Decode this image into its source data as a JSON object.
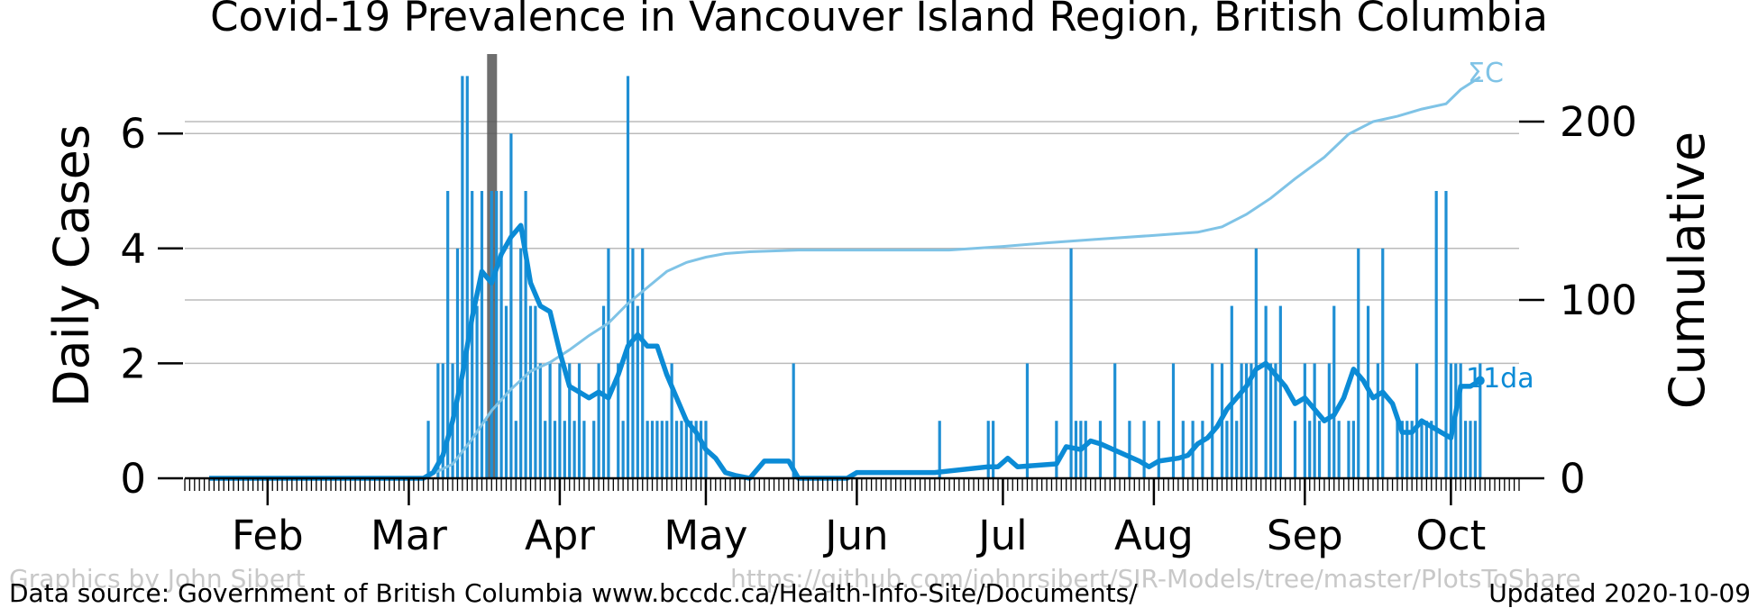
{
  "chart_data": {
    "type": "bar",
    "title": "Covid-19 Prevalence in Vancouver Island Region, British Columbia",
    "ylabel": "Daily Cases",
    "ylabel_right": "Cumulative",
    "ylim": [
      0,
      7
    ],
    "ylim_right": [
      0,
      225
    ],
    "yticks": [
      0,
      2,
      4,
      6
    ],
    "yticks_right": [
      0,
      100,
      200
    ],
    "x_range": [
      "2020-01-15",
      "2020-10-15"
    ],
    "month_ticks": [
      {
        "label": "Feb",
        "date": "2020-02-01"
      },
      {
        "label": "Mar",
        "date": "2020-03-01"
      },
      {
        "label": "Apr",
        "date": "2020-04-01"
      },
      {
        "label": "May",
        "date": "2020-05-01"
      },
      {
        "label": "Jun",
        "date": "2020-06-01"
      },
      {
        "label": "Jul",
        "date": "2020-07-01"
      },
      {
        "label": "Aug",
        "date": "2020-08-01"
      },
      {
        "label": "Sep",
        "date": "2020-09-01"
      },
      {
        "label": "Oct",
        "date": "2020-10-01"
      }
    ],
    "marker_date": "2020-03-18",
    "colors": {
      "daily": "#1f8fd4",
      "moving_avg": "#0b8bd6",
      "cumulative": "#7fc3e6",
      "marker": "#555555",
      "grid": "#bbbbbb"
    },
    "daily_cases": {
      "x": [
        "2020-03-05",
        "2020-03-07",
        "2020-03-08",
        "2020-03-09",
        "2020-03-10",
        "2020-03-11",
        "2020-03-12",
        "2020-03-13",
        "2020-03-14",
        "2020-03-15",
        "2020-03-16",
        "2020-03-17",
        "2020-03-18",
        "2020-03-19",
        "2020-03-20",
        "2020-03-21",
        "2020-03-22",
        "2020-03-23",
        "2020-03-24",
        "2020-03-25",
        "2020-03-26",
        "2020-03-27",
        "2020-03-28",
        "2020-03-29",
        "2020-03-30",
        "2020-03-31",
        "2020-04-01",
        "2020-04-02",
        "2020-04-03",
        "2020-04-04",
        "2020-04-05",
        "2020-04-06",
        "2020-04-08",
        "2020-04-09",
        "2020-04-10",
        "2020-04-11",
        "2020-04-13",
        "2020-04-14",
        "2020-04-15",
        "2020-04-16",
        "2020-04-17",
        "2020-04-18",
        "2020-04-19",
        "2020-04-20",
        "2020-04-21",
        "2020-04-22",
        "2020-04-23",
        "2020-04-24",
        "2020-04-25",
        "2020-04-26",
        "2020-04-27",
        "2020-04-28",
        "2020-04-29",
        "2020-04-30",
        "2020-05-01",
        "2020-05-19",
        "2020-06-18",
        "2020-06-28",
        "2020-06-29",
        "2020-07-06",
        "2020-07-12",
        "2020-07-15",
        "2020-07-16",
        "2020-07-17",
        "2020-07-18",
        "2020-07-21",
        "2020-07-24",
        "2020-07-27",
        "2020-07-30",
        "2020-08-02",
        "2020-08-05",
        "2020-08-07",
        "2020-08-09",
        "2020-08-11",
        "2020-08-13",
        "2020-08-15",
        "2020-08-16",
        "2020-08-17",
        "2020-08-18",
        "2020-08-19",
        "2020-08-20",
        "2020-08-21",
        "2020-08-22",
        "2020-08-24",
        "2020-08-25",
        "2020-08-26",
        "2020-08-27",
        "2020-08-30",
        "2020-09-01",
        "2020-09-02",
        "2020-09-03",
        "2020-09-04",
        "2020-09-06",
        "2020-09-07",
        "2020-09-08",
        "2020-09-10",
        "2020-09-11",
        "2020-09-12",
        "2020-09-14",
        "2020-09-16",
        "2020-09-17",
        "2020-09-20",
        "2020-09-21",
        "2020-09-22",
        "2020-09-23",
        "2020-09-24",
        "2020-09-25",
        "2020-09-26",
        "2020-09-27",
        "2020-09-28",
        "2020-09-30",
        "2020-10-01",
        "2020-10-02",
        "2020-10-03",
        "2020-10-04",
        "2020-10-05",
        "2020-10-06",
        "2020-10-07"
      ],
      "values": [
        1,
        2,
        2,
        5,
        2,
        4,
        7,
        7,
        5,
        3,
        5,
        1,
        5,
        5,
        5,
        3,
        6,
        1,
        4,
        5,
        3,
        3,
        2,
        1,
        2,
        1,
        2,
        1,
        2,
        1,
        2,
        1,
        1,
        2,
        3,
        4,
        2,
        1,
        7,
        4,
        3,
        4,
        1,
        1,
        1,
        1,
        1,
        2,
        1,
        1,
        1,
        1,
        1,
        1,
        1,
        2,
        1,
        1,
        1,
        2,
        1,
        4,
        1,
        1,
        1,
        1,
        2,
        1,
        1,
        1,
        2,
        1,
        1,
        1,
        2,
        2,
        1,
        3,
        1,
        2,
        2,
        2,
        4,
        3,
        2,
        2,
        3,
        1,
        2,
        1,
        2,
        1,
        2,
        3,
        1,
        1,
        1,
        4,
        3,
        2,
        4,
        1,
        1,
        1,
        1,
        2,
        1,
        1,
        1,
        5,
        5,
        2,
        2,
        2,
        1,
        1,
        1,
        2
      ]
    },
    "moving_avg": {
      "label": "11da",
      "x": [
        "2020-01-20",
        "2020-03-04",
        "2020-03-06",
        "2020-03-08",
        "2020-03-10",
        "2020-03-12",
        "2020-03-14",
        "2020-03-16",
        "2020-03-18",
        "2020-03-20",
        "2020-03-22",
        "2020-03-24",
        "2020-03-26",
        "2020-03-27",
        "2020-03-28",
        "2020-03-30",
        "2020-04-01",
        "2020-04-03",
        "2020-04-05",
        "2020-04-07",
        "2020-04-09",
        "2020-04-11",
        "2020-04-13",
        "2020-04-15",
        "2020-04-17",
        "2020-04-19",
        "2020-04-21",
        "2020-04-23",
        "2020-04-25",
        "2020-04-27",
        "2020-04-29",
        "2020-05-01",
        "2020-05-03",
        "2020-05-05",
        "2020-05-07",
        "2020-05-10",
        "2020-05-13",
        "2020-05-16",
        "2020-05-18",
        "2020-05-20",
        "2020-05-30",
        "2020-06-01",
        "2020-06-10",
        "2020-06-17",
        "2020-06-28",
        "2020-06-30",
        "2020-07-02",
        "2020-07-04",
        "2020-07-12",
        "2020-07-14",
        "2020-07-17",
        "2020-07-19",
        "2020-07-21",
        "2020-07-29",
        "2020-07-31",
        "2020-08-02",
        "2020-08-06",
        "2020-08-08",
        "2020-08-10",
        "2020-08-12",
        "2020-08-14",
        "2020-08-16",
        "2020-08-18",
        "2020-08-20",
        "2020-08-22",
        "2020-08-24",
        "2020-08-26",
        "2020-08-28",
        "2020-08-30",
        "2020-09-01",
        "2020-09-03",
        "2020-09-05",
        "2020-09-07",
        "2020-09-09",
        "2020-09-11",
        "2020-09-13",
        "2020-09-15",
        "2020-09-17",
        "2020-09-19",
        "2020-09-21",
        "2020-09-23",
        "2020-09-25",
        "2020-09-27",
        "2020-09-29",
        "2020-10-01",
        "2020-10-03",
        "2020-10-05",
        "2020-10-07"
      ],
      "values": [
        0,
        0,
        0.1,
        0.4,
        1.0,
        1.8,
        2.8,
        3.6,
        3.4,
        3.9,
        4.2,
        4.4,
        3.4,
        3.2,
        3.0,
        2.9,
        2.2,
        1.6,
        1.5,
        1.4,
        1.5,
        1.4,
        1.8,
        2.3,
        2.5,
        2.3,
        2.3,
        1.8,
        1.4,
        1.0,
        0.8,
        0.5,
        0.35,
        0.1,
        0.05,
        0,
        0.3,
        0.3,
        0.3,
        0,
        0,
        0.1,
        0.1,
        0.1,
        0.2,
        0.2,
        0.35,
        0.2,
        0.25,
        0.55,
        0.5,
        0.65,
        0.6,
        0.3,
        0.2,
        0.3,
        0.35,
        0.4,
        0.6,
        0.7,
        0.9,
        1.2,
        1.4,
        1.6,
        1.9,
        2.0,
        1.8,
        1.6,
        1.3,
        1.4,
        1.2,
        1.0,
        1.1,
        1.4,
        1.9,
        1.7,
        1.4,
        1.5,
        1.3,
        0.8,
        0.8,
        1.0,
        0.9,
        0.8,
        0.7,
        1.6,
        1.6,
        1.7
      ]
    },
    "cumulative": {
      "label": "ΣC",
      "x": [
        "2020-01-20",
        "2020-03-04",
        "2020-03-10",
        "2020-03-14",
        "2020-03-18",
        "2020-03-22",
        "2020-03-26",
        "2020-03-30",
        "2020-04-03",
        "2020-04-07",
        "2020-04-11",
        "2020-04-15",
        "2020-04-19",
        "2020-04-23",
        "2020-04-27",
        "2020-05-01",
        "2020-05-05",
        "2020-05-10",
        "2020-05-20",
        "2020-06-01",
        "2020-06-20",
        "2020-07-01",
        "2020-07-10",
        "2020-07-20",
        "2020-07-31",
        "2020-08-10",
        "2020-08-15",
        "2020-08-20",
        "2020-08-25",
        "2020-08-30",
        "2020-09-05",
        "2020-09-10",
        "2020-09-15",
        "2020-09-20",
        "2020-09-25",
        "2020-09-30",
        "2020-10-03",
        "2020-10-07"
      ],
      "values": [
        0,
        0,
        8,
        22,
        38,
        50,
        60,
        65,
        72,
        80,
        87,
        98,
        107,
        116,
        121,
        124,
        126,
        127,
        128,
        128,
        128,
        130,
        132,
        134,
        136,
        138,
        141,
        148,
        157,
        168,
        180,
        193,
        200,
        203,
        207,
        210,
        218,
        225
      ]
    }
  },
  "footer": {
    "source": "Data source: Government of British Columbia www.bccdc.ca/Health-Info-Site/Documents/",
    "updated": "Updated 2020-10-09",
    "credit": "Graphics by John Sibert",
    "url": "https://github.com/johnrsibert/SIR-Models/tree/master/PlotsToShare"
  }
}
